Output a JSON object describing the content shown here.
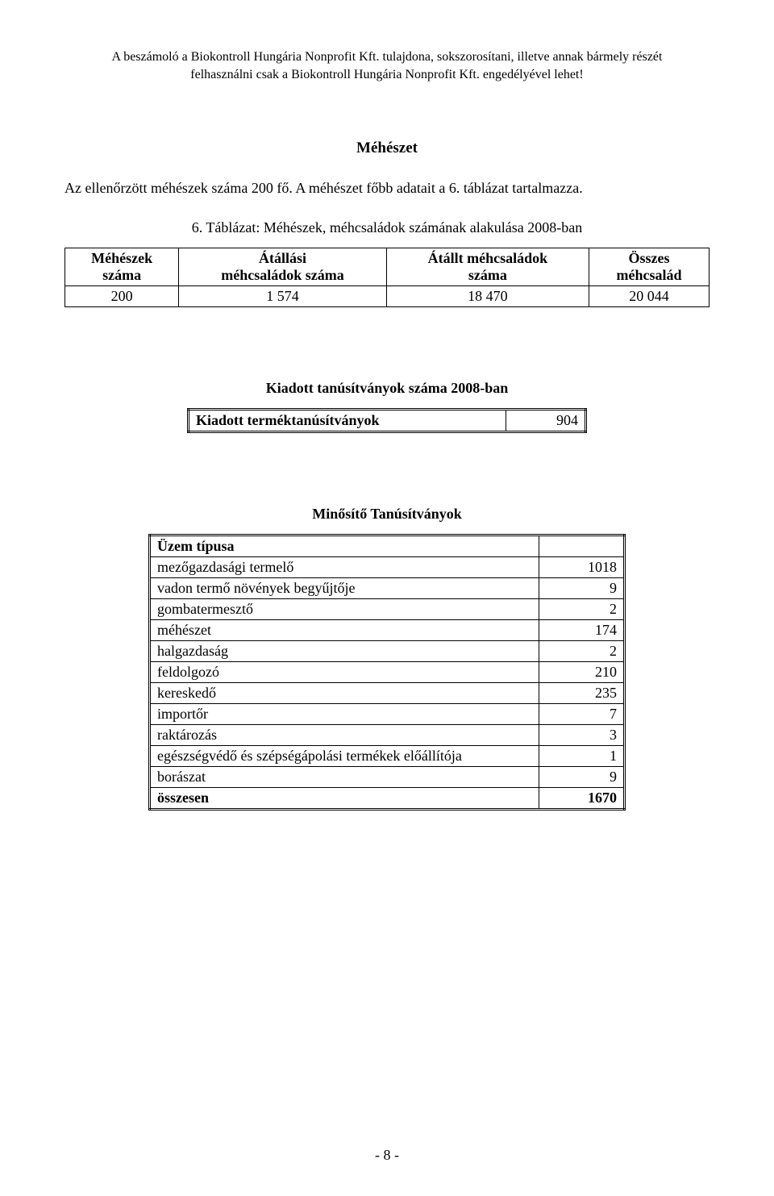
{
  "header": {
    "line1": "A beszámoló a Biokontroll Hungária Nonprofit Kft. tulajdona, sokszorosítani, illetve annak bármely részét",
    "line2": "felhasználni csak a Biokontroll Hungária Nonprofit Kft. engedélyével lehet!"
  },
  "section_title": "Méhészet",
  "intro_line": "Az ellenőrzött méhészek száma 200 fő. A méhészet főbb adatait a 6. táblázat tartalmazza.",
  "table1": {
    "caption": "6. Táblázat: Méhészek, méhcsaládok számának alakulása 2008-ban",
    "headers": [
      "Méhészek száma",
      "Átállási méhcsaládok száma",
      "Átállt méhcsaládok száma",
      "Összes méhcsalád"
    ],
    "headers_l1": [
      "Méhészek",
      "Átállási",
      "Átállt méhcsaládok",
      "Összes"
    ],
    "headers_l2": [
      "száma",
      "méhcsaládok száma",
      "száma",
      "méhcsalád"
    ],
    "row": [
      "200",
      "1 574",
      "18 470",
      "20 044"
    ]
  },
  "table2": {
    "title": "Kiadott tanúsítványok száma 2008-ban",
    "row_label": "Kiadott terméktanúsítványok",
    "row_value": "904"
  },
  "table3": {
    "title": "Minősítő Tanúsítványok",
    "col_header": "Üzem típusa",
    "rows": [
      {
        "label": "mezőgazdasági termelő",
        "value": "1018"
      },
      {
        "label": "vadon termő növények begyűjtője",
        "value": "9"
      },
      {
        "label": "gombatermesztő",
        "value": "2"
      },
      {
        "label": "méhészet",
        "value": "174"
      },
      {
        "label": "halgazdaság",
        "value": "2"
      },
      {
        "label": "feldolgozó",
        "value": "210"
      },
      {
        "label": "kereskedő",
        "value": "235"
      },
      {
        "label": "importőr",
        "value": "7"
      },
      {
        "label": "raktározás",
        "value": "3"
      },
      {
        "label": "egészségvédő és szépségápolási termékek előállítója",
        "value": "1"
      },
      {
        "label": "borászat",
        "value": "9"
      }
    ],
    "total_label": "összesen",
    "total_value": "1670"
  },
  "page_number": "- 8 -",
  "colors": {
    "text": "#000000",
    "background": "#ffffff",
    "border": "#000000"
  }
}
